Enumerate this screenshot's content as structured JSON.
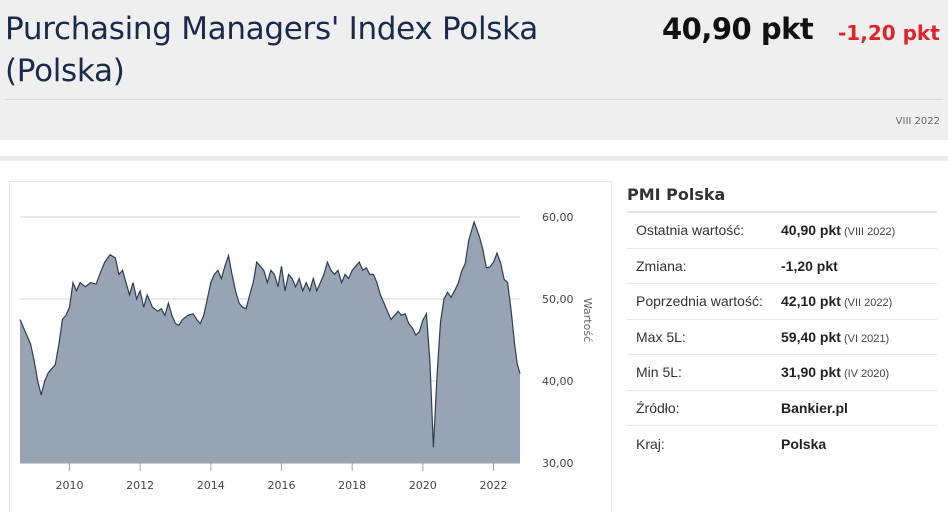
{
  "header": {
    "title": "Purchasing Managers' Index Polska (Polska)",
    "current_value": "40,90 pkt",
    "change": "-1,20 pkt",
    "period": "VIII 2022"
  },
  "sidebar": {
    "title": "PMI Polska",
    "rows": [
      {
        "label": "Ostatnia wartość:",
        "value": "40,90 pkt",
        "note": "(VIII 2022)"
      },
      {
        "label": "Zmiana:",
        "value": "-1,20 pkt",
        "note": ""
      },
      {
        "label": "Poprzednia wartość:",
        "value": "42,10 pkt",
        "note": "(VII 2022)"
      },
      {
        "label": "Max 5L:",
        "value": "59,40 pkt",
        "note": "(VI 2021)"
      },
      {
        "label": "Min 5L:",
        "value": "31,90 pkt",
        "note": "(IV 2020)"
      },
      {
        "label": "Źródło:",
        "value": "Bankier.pl",
        "note": ""
      },
      {
        "label": "Kraj:",
        "value": "Polska",
        "note": ""
      }
    ]
  },
  "colors": {
    "area_fill": "#98a4b3",
    "area_line": "#2e3e52",
    "accent_negative": "#e0242a",
    "title": "#1a2a4a"
  },
  "chart_data": {
    "type": "area",
    "ylabel": "Wartość",
    "xlim": [
      2008.6,
      2022.75
    ],
    "ylim": [
      30,
      60
    ],
    "x_ticks": [
      2010,
      2012,
      2014,
      2016,
      2018,
      2020,
      2022
    ],
    "x_tick_labels": [
      "2010",
      "2012",
      "2014",
      "2016",
      "2018",
      "2020",
      "2022"
    ],
    "y_ticks": [
      30,
      40,
      50,
      60
    ],
    "y_tick_labels": [
      "30,00",
      "40,00",
      "50,00",
      "60,00"
    ],
    "grid": true,
    "series": [
      {
        "points": [
          [
            2008.6,
            47.5
          ],
          [
            2008.75,
            46.0
          ],
          [
            2008.9,
            44.5
          ],
          [
            2009.0,
            42.5
          ],
          [
            2009.1,
            40.0
          ],
          [
            2009.2,
            38.3
          ],
          [
            2009.3,
            40.0
          ],
          [
            2009.4,
            41.0
          ],
          [
            2009.5,
            41.5
          ],
          [
            2009.6,
            42.0
          ],
          [
            2009.7,
            44.5
          ],
          [
            2009.8,
            47.5
          ],
          [
            2009.9,
            48.0
          ],
          [
            2010.0,
            49.0
          ],
          [
            2010.1,
            52.0
          ],
          [
            2010.2,
            51.0
          ],
          [
            2010.3,
            52.0
          ],
          [
            2010.45,
            51.5
          ],
          [
            2010.6,
            52.0
          ],
          [
            2010.75,
            51.8
          ],
          [
            2010.9,
            53.5
          ],
          [
            2011.0,
            54.5
          ],
          [
            2011.15,
            55.4
          ],
          [
            2011.3,
            55.0
          ],
          [
            2011.4,
            53.0
          ],
          [
            2011.5,
            53.5
          ],
          [
            2011.6,
            52.0
          ],
          [
            2011.7,
            50.5
          ],
          [
            2011.8,
            52.0
          ],
          [
            2011.9,
            50.0
          ],
          [
            2012.0,
            51.0
          ],
          [
            2012.1,
            49.0
          ],
          [
            2012.2,
            50.5
          ],
          [
            2012.35,
            49.0
          ],
          [
            2012.5,
            48.5
          ],
          [
            2012.6,
            48.8
          ],
          [
            2012.7,
            48.0
          ],
          [
            2012.8,
            49.5
          ],
          [
            2012.9,
            48.0
          ],
          [
            2013.0,
            47.0
          ],
          [
            2013.1,
            46.8
          ],
          [
            2013.2,
            47.5
          ],
          [
            2013.35,
            48.0
          ],
          [
            2013.5,
            48.2
          ],
          [
            2013.6,
            47.5
          ],
          [
            2013.7,
            47.0
          ],
          [
            2013.8,
            48.0
          ],
          [
            2013.9,
            50.0
          ],
          [
            2014.0,
            52.0
          ],
          [
            2014.1,
            53.0
          ],
          [
            2014.2,
            53.5
          ],
          [
            2014.3,
            52.5
          ],
          [
            2014.4,
            54.0
          ],
          [
            2014.5,
            55.3
          ],
          [
            2014.6,
            53.0
          ],
          [
            2014.7,
            51.0
          ],
          [
            2014.8,
            49.5
          ],
          [
            2014.9,
            49.0
          ],
          [
            2015.0,
            48.8
          ],
          [
            2015.1,
            50.5
          ],
          [
            2015.2,
            52.0
          ],
          [
            2015.3,
            54.5
          ],
          [
            2015.4,
            54.0
          ],
          [
            2015.5,
            53.5
          ],
          [
            2015.6,
            52.0
          ],
          [
            2015.7,
            53.5
          ],
          [
            2015.8,
            53.0
          ],
          [
            2015.9,
            51.5
          ],
          [
            2016.0,
            54.0
          ],
          [
            2016.1,
            51.0
          ],
          [
            2016.2,
            53.0
          ],
          [
            2016.3,
            52.5
          ],
          [
            2016.4,
            51.5
          ],
          [
            2016.5,
            52.5
          ],
          [
            2016.6,
            51.0
          ],
          [
            2016.7,
            52.0
          ],
          [
            2016.8,
            51.0
          ],
          [
            2016.9,
            52.5
          ],
          [
            2017.0,
            51.0
          ],
          [
            2017.1,
            52.0
          ],
          [
            2017.2,
            53.0
          ],
          [
            2017.3,
            54.5
          ],
          [
            2017.4,
            53.5
          ],
          [
            2017.5,
            53.0
          ],
          [
            2017.6,
            53.5
          ],
          [
            2017.7,
            52.0
          ],
          [
            2017.8,
            53.0
          ],
          [
            2017.9,
            52.5
          ],
          [
            2018.0,
            53.5
          ],
          [
            2018.1,
            54.0
          ],
          [
            2018.2,
            54.5
          ],
          [
            2018.3,
            53.5
          ],
          [
            2018.4,
            53.8
          ],
          [
            2018.5,
            53.0
          ],
          [
            2018.6,
            53.0
          ],
          [
            2018.7,
            52.0
          ],
          [
            2018.8,
            50.5
          ],
          [
            2018.9,
            49.5
          ],
          [
            2019.0,
            48.5
          ],
          [
            2019.1,
            47.5
          ],
          [
            2019.2,
            48.0
          ],
          [
            2019.3,
            48.5
          ],
          [
            2019.4,
            48.0
          ],
          [
            2019.5,
            48.2
          ],
          [
            2019.6,
            47.0
          ],
          [
            2019.7,
            46.5
          ],
          [
            2019.8,
            45.6
          ],
          [
            2019.9,
            46.0
          ],
          [
            2020.0,
            47.4
          ],
          [
            2020.1,
            48.2
          ],
          [
            2020.2,
            42.4
          ],
          [
            2020.3,
            31.9
          ],
          [
            2020.4,
            40.6
          ],
          [
            2020.5,
            47.2
          ],
          [
            2020.6,
            50.0
          ],
          [
            2020.7,
            50.8
          ],
          [
            2020.8,
            50.2
          ],
          [
            2020.9,
            51.0
          ],
          [
            2021.0,
            51.9
          ],
          [
            2021.1,
            53.4
          ],
          [
            2021.2,
            54.3
          ],
          [
            2021.3,
            57.2
          ],
          [
            2021.45,
            59.4
          ],
          [
            2021.6,
            57.6
          ],
          [
            2021.7,
            56.0
          ],
          [
            2021.8,
            53.8
          ],
          [
            2021.9,
            53.9
          ],
          [
            2022.0,
            54.5
          ],
          [
            2022.1,
            55.6
          ],
          [
            2022.2,
            54.4
          ],
          [
            2022.3,
            52.4
          ],
          [
            2022.4,
            52.0
          ],
          [
            2022.5,
            48.5
          ],
          [
            2022.6,
            44.4
          ],
          [
            2022.67,
            42.1
          ],
          [
            2022.75,
            40.9
          ]
        ]
      }
    ]
  }
}
